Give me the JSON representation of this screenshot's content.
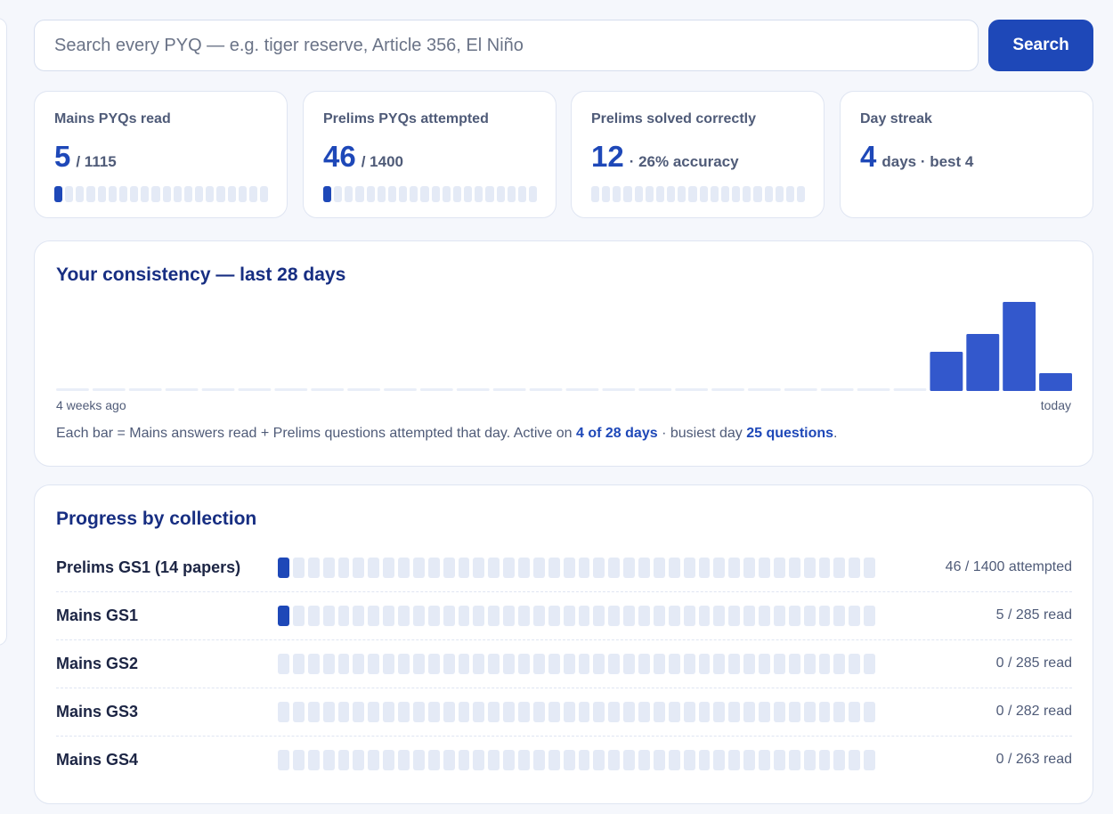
{
  "search": {
    "placeholder": "Search every PYQ — e.g. tiger reserve, Article 356, El Niño",
    "button_label": "Search"
  },
  "stats": [
    {
      "label": "Mains PYQs read",
      "value": "5",
      "suffix": "/ 1115",
      "progress": 0.0045
    },
    {
      "label": "Prelims PYQs attempted",
      "value": "46",
      "suffix": "/ 1400",
      "progress": 0.033
    },
    {
      "label": "Prelims solved correctly",
      "value": "12",
      "suffix": "· 26% accuracy",
      "progress": 0.0
    },
    {
      "label": "Day streak",
      "value": "4",
      "suffix": "days · best 4"
    }
  ],
  "consistency": {
    "title": "Your consistency — last 28 days",
    "start_label": "4 weeks ago",
    "end_label": "today",
    "caption_prefix": "Each bar = Mains answers read + Prelims questions attempted that day. Active on ",
    "active_days": "4 of 28 days",
    "caption_mid": " · busiest day ",
    "busiest": "25 questions",
    "caption_suffix": ".",
    "bar_color": "#3358cc",
    "daily_counts": [
      0,
      0,
      0,
      0,
      0,
      0,
      0,
      0,
      0,
      0,
      0,
      0,
      0,
      0,
      0,
      0,
      0,
      0,
      0,
      0,
      0,
      0,
      0,
      0,
      11,
      16,
      25,
      5
    ]
  },
  "collections": {
    "title": "Progress by collection",
    "rows": [
      {
        "name": "Prelims GS1 (14 papers)",
        "count": "46 / 1400 attempted",
        "progress": 0.033
      },
      {
        "name": "Mains GS1",
        "count": "5 / 285 read",
        "progress": 0.0175
      },
      {
        "name": "Mains GS2",
        "count": "0 / 285 read",
        "progress": 0
      },
      {
        "name": "Mains GS3",
        "count": "0 / 282 read",
        "progress": 0
      },
      {
        "name": "Mains GS4",
        "count": "0 / 263 read",
        "progress": 0
      }
    ]
  },
  "colors": {
    "accent": "#1e48b8",
    "heading": "#172e82",
    "track": "#e4eaf6"
  }
}
